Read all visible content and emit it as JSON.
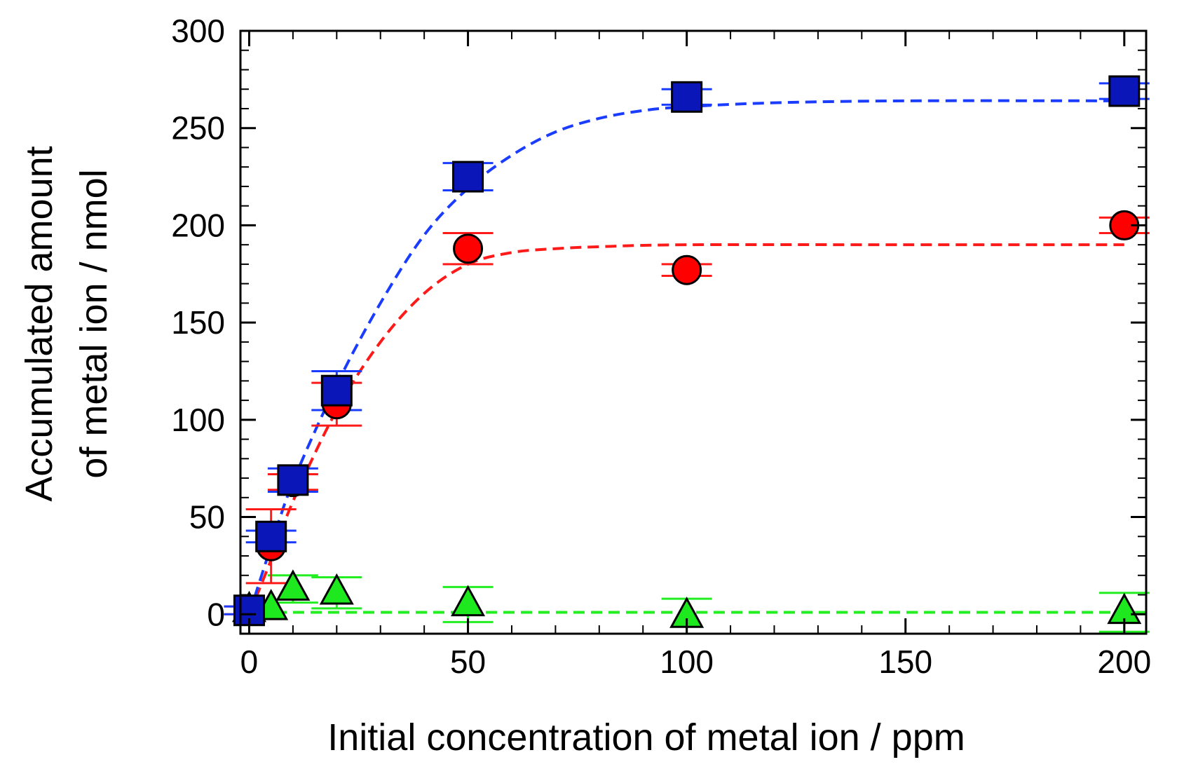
{
  "chart_data": {
    "type": "scatter",
    "title": "",
    "xlabel": "Initial concentration of metal ion / ppm",
    "ylabel_line1": "Accumulated amount",
    "ylabel_line2": "of metal ion / nmol",
    "xlim": [
      -2,
      205
    ],
    "ylim": [
      -10,
      300
    ],
    "x_ticks": [
      0,
      50,
      100,
      150,
      200
    ],
    "x_tick_labels": [
      "0",
      "50",
      "100",
      "150",
      "200"
    ],
    "y_ticks": [
      0,
      50,
      100,
      150,
      200,
      250,
      300
    ],
    "y_tick_labels": [
      "0",
      "50",
      "100",
      "150",
      "200",
      "250",
      "300"
    ],
    "series": [
      {
        "name": "blue-squares",
        "marker": "square",
        "color": "#0a16b8",
        "line_color": "#1a3cff",
        "bar_color": "#1a3cff",
        "x": [
          0,
          5,
          10,
          20,
          50,
          100,
          200
        ],
        "y": [
          2,
          40,
          69,
          115,
          225,
          266,
          269
        ],
        "err": [
          2,
          3,
          6,
          10,
          7,
          4,
          4
        ],
        "fit_x": [
          0,
          5,
          10,
          20,
          30,
          40,
          50,
          60,
          70,
          80,
          90,
          100,
          120,
          150,
          200
        ],
        "fit_y": [
          0,
          35,
          68,
          118,
          160,
          195,
          219,
          236,
          248,
          255,
          259,
          261,
          263,
          264,
          264
        ]
      },
      {
        "name": "red-circles",
        "marker": "circle",
        "color": "#ff0000",
        "line_color": "#ff1a1a",
        "bar_color": "#ff1a1a",
        "x": [
          0,
          5,
          10,
          20,
          50,
          100,
          200
        ],
        "y": [
          2,
          35,
          68,
          108,
          188,
          177,
          200
        ],
        "err": [
          2,
          19,
          4,
          11,
          8,
          3,
          4
        ],
        "fit_x": [
          0,
          5,
          10,
          20,
          30,
          40,
          50,
          60,
          70,
          80,
          100,
          150,
          200
        ],
        "fit_y": [
          0,
          28,
          58,
          105,
          140,
          165,
          180,
          186,
          188,
          189,
          190,
          190,
          190
        ]
      },
      {
        "name": "green-triangles",
        "marker": "triangle",
        "color": "#1ee81e",
        "line_color": "#22ee22",
        "bar_color": "#22ee22",
        "x": [
          0,
          5,
          10,
          20,
          50,
          100,
          200
        ],
        "y": [
          2,
          3,
          13,
          11,
          5,
          -1,
          1
        ],
        "err": [
          0,
          0,
          7,
          8,
          9,
          9,
          10
        ],
        "fit_x": [
          -2,
          205
        ],
        "fit_y": [
          1,
          1
        ]
      }
    ]
  }
}
